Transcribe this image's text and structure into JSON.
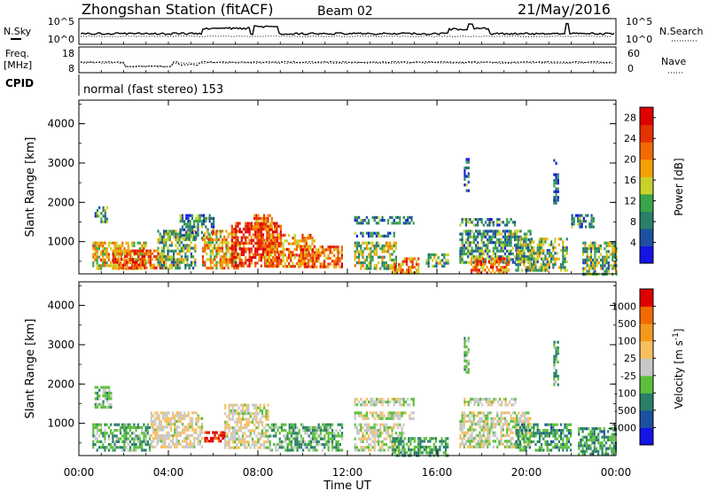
{
  "header": {
    "station": "Zhongshan Station (fitACF)",
    "beam": "Beam 02",
    "date": "21/May/2016"
  },
  "noise_panel": {
    "left_label": "N.Sky",
    "right_label": "N.Search",
    "left_ticks": [
      "10^5",
      "10^0"
    ],
    "right_ticks": [
      "10^5",
      "10^0"
    ]
  },
  "freq_panel": {
    "left_label_line1": "Freq.",
    "left_label_line2": "[MHz]",
    "left_ticks": [
      "18",
      "8"
    ],
    "right_label": "Nave",
    "right_ticks": [
      "60",
      "0"
    ]
  },
  "cpid_panel": {
    "label": "CPID",
    "text": "normal (fast stereo) 153"
  },
  "x_axis": {
    "label": "Time UT",
    "ticks": [
      "00:00",
      "04:00",
      "08:00",
      "12:00",
      "16:00",
      "20:00",
      "00:00"
    ]
  },
  "colors": {
    "power_scale": [
      "#1414e6",
      "#1e50a0",
      "#2a7f6a",
      "#3aa54a",
      "#c8d22a",
      "#f5a000",
      "#f26a00",
      "#e53000",
      "#e00000"
    ],
    "velocity_scale": [
      "#e00000",
      "#f26a00",
      "#f39a1e",
      "#f7c060",
      "#c8c8c8",
      "#5cbf3a",
      "#2a7f6a",
      "#1e50a0",
      "#1414e6"
    ]
  },
  "chart_data": [
    {
      "type": "heatmap",
      "title": "",
      "xlabel": "Time UT",
      "ylabel": "Slant Range [km]",
      "x_ticks": [
        "00:00",
        "04:00",
        "08:00",
        "12:00",
        "16:00",
        "20:00",
        "00:00"
      ],
      "y_ticks": [
        "1000",
        "2000",
        "3000",
        "4000"
      ],
      "xlim": [
        0,
        24
      ],
      "ylim": [
        180,
        4600
      ],
      "colorbar": {
        "label": "Power [dB]",
        "ticks": [
          "28",
          "24",
          "20",
          "16",
          "12",
          "8",
          "4"
        ],
        "range": [
          0,
          30
        ]
      },
      "blobs": [
        {
          "t0": 0.6,
          "t1": 3.0,
          "r0": 350,
          "r1": 1000,
          "v": 17
        },
        {
          "t0": 1.5,
          "t1": 3.8,
          "r0": 350,
          "r1": 800,
          "v": 23
        },
        {
          "t0": 0.7,
          "t1": 1.3,
          "r0": 1500,
          "r1": 1900,
          "v": 10
        },
        {
          "t0": 3.5,
          "t1": 5.2,
          "r0": 350,
          "r1": 1300,
          "v": 12
        },
        {
          "t0": 4.5,
          "t1": 6.0,
          "r0": 1100,
          "r1": 1700,
          "v": 9
        },
        {
          "t0": 5.5,
          "t1": 7.2,
          "r0": 350,
          "r1": 1300,
          "v": 18
        },
        {
          "t0": 6.8,
          "t1": 9.0,
          "r0": 350,
          "r1": 1500,
          "v": 26
        },
        {
          "t0": 7.8,
          "t1": 8.6,
          "r0": 1300,
          "r1": 1700,
          "v": 22
        },
        {
          "t0": 8.3,
          "t1": 10.5,
          "r0": 350,
          "r1": 1200,
          "v": 21
        },
        {
          "t0": 9.8,
          "t1": 11.8,
          "r0": 350,
          "r1": 900,
          "v": 22
        },
        {
          "t0": 12.3,
          "t1": 14.2,
          "r0": 350,
          "r1": 1000,
          "v": 14
        },
        {
          "t0": 12.3,
          "t1": 14.2,
          "r0": 1150,
          "r1": 1250,
          "v": 8
        },
        {
          "t0": 14.0,
          "t1": 15.2,
          "r0": 200,
          "r1": 600,
          "v": 21
        },
        {
          "t0": 12.3,
          "t1": 15.0,
          "r0": 1500,
          "r1": 1650,
          "v": 8
        },
        {
          "t0": 15.5,
          "t1": 16.5,
          "r0": 400,
          "r1": 700,
          "v": 12
        },
        {
          "t0": 17.0,
          "t1": 20.2,
          "r0": 500,
          "r1": 1300,
          "v": 10
        },
        {
          "t0": 17.5,
          "t1": 19.2,
          "r0": 200,
          "r1": 600,
          "v": 22
        },
        {
          "t0": 17.0,
          "t1": 19.5,
          "r0": 1450,
          "r1": 1600,
          "v": 9
        },
        {
          "t0": 19.5,
          "t1": 21.8,
          "r0": 300,
          "r1": 1100,
          "v": 12
        },
        {
          "t0": 22.5,
          "t1": 24.0,
          "r0": 200,
          "r1": 1000,
          "v": 12
        },
        {
          "t0": 22.0,
          "t1": 23.0,
          "r0": 1400,
          "r1": 1700,
          "v": 9
        },
        {
          "t0": 17.2,
          "t1": 17.4,
          "r0": 2300,
          "r1": 3200,
          "v": 8
        },
        {
          "t0": 21.2,
          "t1": 21.4,
          "r0": 2000,
          "r1": 3100,
          "v": 7
        }
      ]
    },
    {
      "type": "heatmap",
      "title": "",
      "xlabel": "Time UT",
      "ylabel": "Slant Range [km]",
      "x_ticks": [
        "00:00",
        "04:00",
        "08:00",
        "12:00",
        "16:00",
        "20:00",
        "00:00"
      ],
      "y_ticks": [
        "1000",
        "2000",
        "3000",
        "4000"
      ],
      "xlim": [
        0,
        24
      ],
      "ylim": [
        180,
        4600
      ],
      "colorbar": {
        "label": "Velocity [m s^-1]",
        "ticks": [
          "1000",
          "500",
          "100",
          "25",
          "-25",
          "-100",
          "-500",
          "-1000"
        ],
        "range": [
          -1100,
          1100
        ]
      },
      "blobs": [
        {
          "t0": 0.6,
          "t1": 3.2,
          "r0": 350,
          "r1": 1000,
          "v": -300
        },
        {
          "t0": 0.7,
          "t1": 1.4,
          "r0": 1400,
          "r1": 1950,
          "v": -200
        },
        {
          "t0": 3.2,
          "t1": 5.5,
          "r0": 400,
          "r1": 1300,
          "v": 80
        },
        {
          "t0": 5.6,
          "t1": 6.5,
          "r0": 550,
          "r1": 800,
          "v": 1000
        },
        {
          "t0": 6.5,
          "t1": 8.5,
          "r0": 350,
          "r1": 1500,
          "v": 60
        },
        {
          "t0": 8.5,
          "t1": 11.8,
          "r0": 350,
          "r1": 1000,
          "v": -300
        },
        {
          "t0": 12.3,
          "t1": 14.5,
          "r0": 300,
          "r1": 1000,
          "v": -20
        },
        {
          "t0": 12.3,
          "t1": 15.0,
          "r0": 1150,
          "r1": 1300,
          "v": 0
        },
        {
          "t0": 12.3,
          "t1": 15.0,
          "r0": 1500,
          "r1": 1650,
          "v": -10
        },
        {
          "t0": 14.0,
          "t1": 16.5,
          "r0": 200,
          "r1": 650,
          "v": -350
        },
        {
          "t0": 17.0,
          "t1": 20.2,
          "r0": 400,
          "r1": 1300,
          "v": 0
        },
        {
          "t0": 17.2,
          "t1": 19.5,
          "r0": 1450,
          "r1": 1650,
          "v": -15
        },
        {
          "t0": 19.5,
          "t1": 22.0,
          "r0": 300,
          "r1": 1000,
          "v": -400
        },
        {
          "t0": 22.3,
          "t1": 24.0,
          "r0": 200,
          "r1": 900,
          "v": -400
        },
        {
          "t0": 17.2,
          "t1": 17.4,
          "r0": 2300,
          "r1": 3200,
          "v": -200
        },
        {
          "t0": 21.2,
          "t1": 21.4,
          "r0": 2000,
          "r1": 3100,
          "v": -300
        }
      ]
    }
  ]
}
